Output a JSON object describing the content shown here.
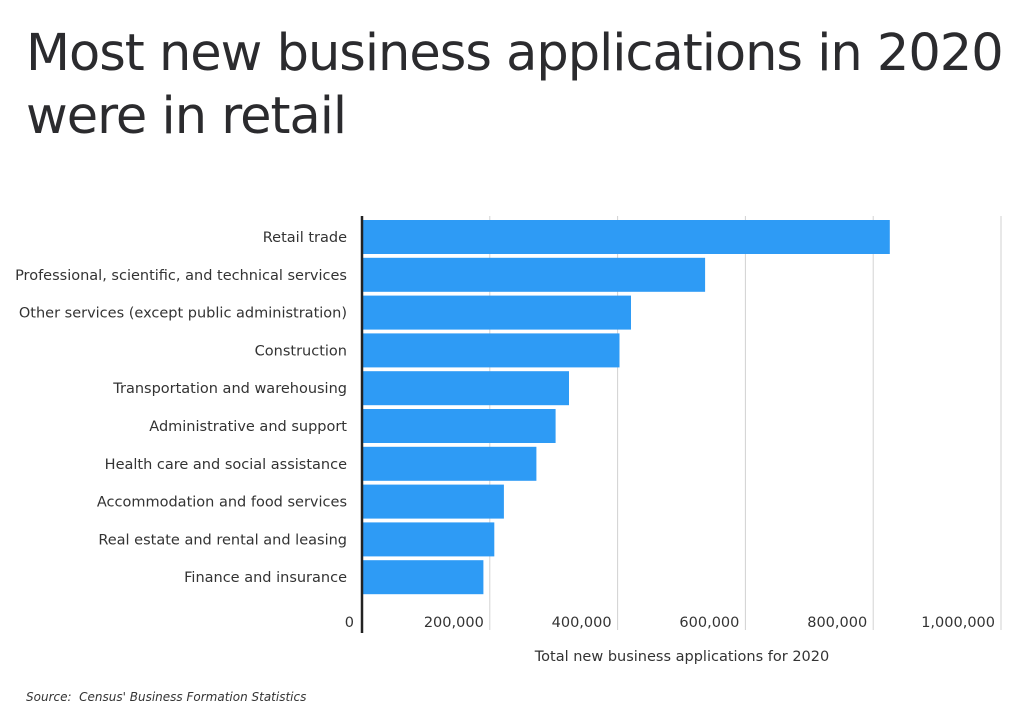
{
  "page": {
    "title": "Most new business applications in 2020 were in retail",
    "source": "Source:  Census' Business Formation Statistics"
  },
  "colors": {
    "bar": "#2e9bf5",
    "grid": "#d2d2d2",
    "axis": "#222222",
    "text": "#333333"
  },
  "chart_data": {
    "type": "bar",
    "orientation": "horizontal",
    "title": "Most new business applications in 2020 were in retail",
    "xlabel": "Total new business applications for 2020",
    "ylabel": "",
    "xlim": [
      0,
      1000000
    ],
    "grid": true,
    "legend": "none",
    "ticks": [
      {
        "value": 0,
        "label": "0"
      },
      {
        "value": 200000,
        "label": "200,000"
      },
      {
        "value": 400000,
        "label": "400,000"
      },
      {
        "value": 600000,
        "label": "600,000"
      },
      {
        "value": 800000,
        "label": "800,000"
      },
      {
        "value": 1000000,
        "label": "1,000,000"
      }
    ],
    "categories": [
      "Retail trade",
      "Professional, scientific, and technical services",
      "Other services (except public administration)",
      "Construction",
      "Transportation and warehousing",
      "Administrative and support",
      "Health care and social assistance",
      "Accommodation and food services",
      "Real estate and rental and leasing",
      "Finance and insurance"
    ],
    "values": [
      826000,
      537000,
      421000,
      403000,
      324000,
      303000,
      273000,
      222000,
      207000,
      190000
    ]
  }
}
